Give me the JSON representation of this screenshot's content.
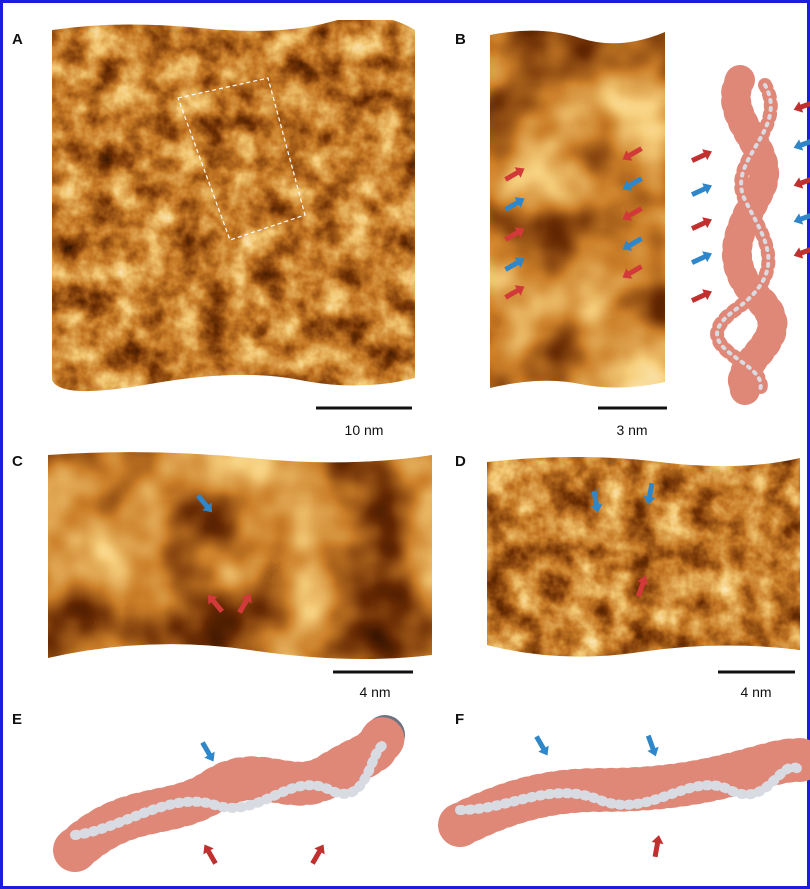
{
  "panels": [
    {
      "label": "A",
      "scale_bar": "10 nm"
    },
    {
      "label": "B",
      "scale_bar": "3 nm"
    },
    {
      "label": "C",
      "scale_bar": "4 nm"
    },
    {
      "label": "D",
      "scale_bar": "4 nm"
    },
    {
      "label": "E"
    },
    {
      "label": "F"
    }
  ]
}
